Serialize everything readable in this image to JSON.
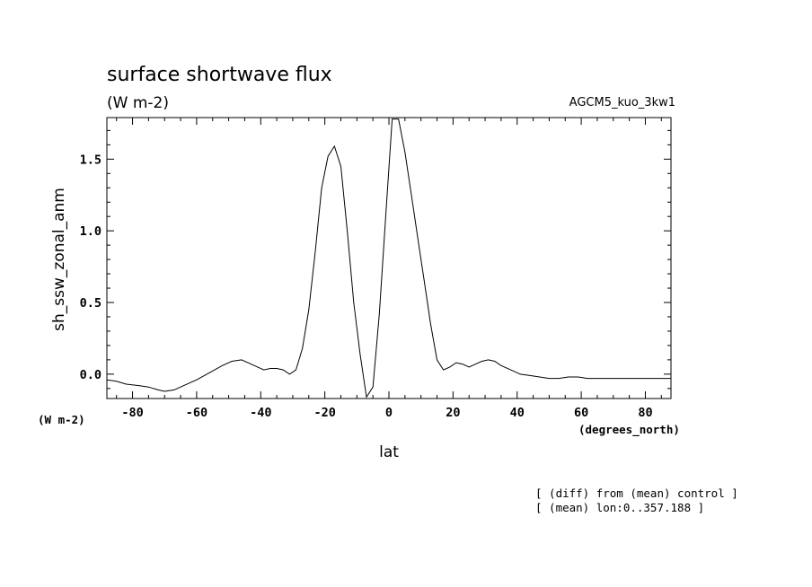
{
  "chart_data": {
    "type": "line",
    "title": "surface shortwave flux",
    "units": "(W m-2)",
    "experiment": "AGCM5_kuo_3kw1",
    "xlabel": "lat",
    "x_units": "(degrees_north)",
    "ylabel": "sh_ssw_zonal_anm",
    "y_units": "(W m-2)",
    "notes": [
      "[ (diff) from (mean) control ]",
      "[ (mean) lon:0..357.188 ]"
    ],
    "xlim": [
      -88,
      88
    ],
    "ylim": [
      -0.17,
      1.79
    ],
    "x_ticks": [
      -80,
      -60,
      -40,
      -20,
      0,
      20,
      40,
      60,
      80
    ],
    "x_tick_labels": [
      "-80",
      "-60",
      "-40",
      "-20",
      "0",
      "20",
      "40",
      "60",
      "80"
    ],
    "y_ticks": [
      0.0,
      0.5,
      1.0,
      1.5
    ],
    "y_tick_labels": [
      "0.0",
      "0.5",
      "1.0",
      "1.5"
    ],
    "grid": false,
    "series": [
      {
        "x": [
          -88,
          -85,
          -82,
          -78,
          -75,
          -72,
          -70,
          -67,
          -64,
          -60,
          -56,
          -52,
          -49,
          -46,
          -44,
          -41,
          -39,
          -37,
          -35,
          -33,
          -31,
          -29,
          -27,
          -25,
          -23,
          -21,
          -19,
          -17,
          -15,
          -13,
          -11,
          -9,
          -7,
          -5,
          -3,
          -1,
          1,
          3,
          5,
          7,
          9,
          11,
          13,
          15,
          17,
          19,
          21,
          23,
          25,
          27,
          29,
          31,
          33,
          35,
          38,
          41,
          44,
          47,
          50,
          53,
          56,
          59,
          62,
          65,
          68,
          71,
          74,
          77,
          80,
          83,
          86,
          88
        ],
        "y": [
          -0.04,
          -0.05,
          -0.07,
          -0.08,
          -0.09,
          -0.11,
          -0.12,
          -0.11,
          -0.08,
          -0.04,
          0.01,
          0.06,
          0.09,
          0.1,
          0.08,
          0.05,
          0.03,
          0.04,
          0.04,
          0.03,
          0.0,
          0.03,
          0.18,
          0.45,
          0.85,
          1.3,
          1.52,
          1.59,
          1.45,
          1.0,
          0.5,
          0.14,
          -0.16,
          -0.09,
          0.42,
          1.1,
          1.78,
          1.78,
          1.55,
          1.25,
          0.95,
          0.65,
          0.35,
          0.1,
          0.03,
          0.05,
          0.08,
          0.07,
          0.05,
          0.07,
          0.09,
          0.1,
          0.09,
          0.06,
          0.03,
          0.0,
          -0.01,
          -0.02,
          -0.03,
          -0.03,
          -0.02,
          -0.02,
          -0.03,
          -0.03,
          -0.03,
          -0.03,
          -0.03,
          -0.03,
          -0.03,
          -0.03,
          -0.03,
          -0.03
        ]
      }
    ]
  }
}
